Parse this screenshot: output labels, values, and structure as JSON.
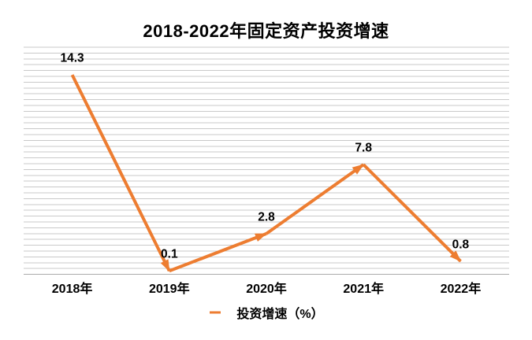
{
  "chart_data": {
    "type": "line",
    "title": "2018-2022年固定资产投资增速",
    "categories": [
      "2018年",
      "2019年",
      "2020年",
      "2021年",
      "2022年"
    ],
    "series": [
      {
        "name": "投资增速（%）",
        "color": "#ED7D31",
        "values": [
          14.3,
          0.1,
          2.8,
          7.8,
          0.8
        ]
      }
    ],
    "data_labels": [
      "14.3",
      "0.1",
      "2.8",
      "7.8",
      "0.8"
    ],
    "xlabel": "",
    "ylabel": "",
    "ylim": [
      0,
      16.3
    ],
    "y_axis_labels_visible": false,
    "grid": {
      "horizontal": true,
      "vertical": false,
      "line_count": 40,
      "color": "#C9C9C9",
      "axis_line_color": "#ABABAB"
    },
    "line_style": "segments-with-arrowheads",
    "line_width": 4,
    "legend_position": "bottom"
  },
  "legend": {
    "icon": "arrow-right-icon",
    "label": "投资增速（%）",
    "color": "#ED7D31"
  },
  "colors": {
    "line": "#ED7D31",
    "grid": "#C9C9C9",
    "axis": "#ABABAB",
    "background": "#FFFFFF",
    "text": "#000000"
  }
}
